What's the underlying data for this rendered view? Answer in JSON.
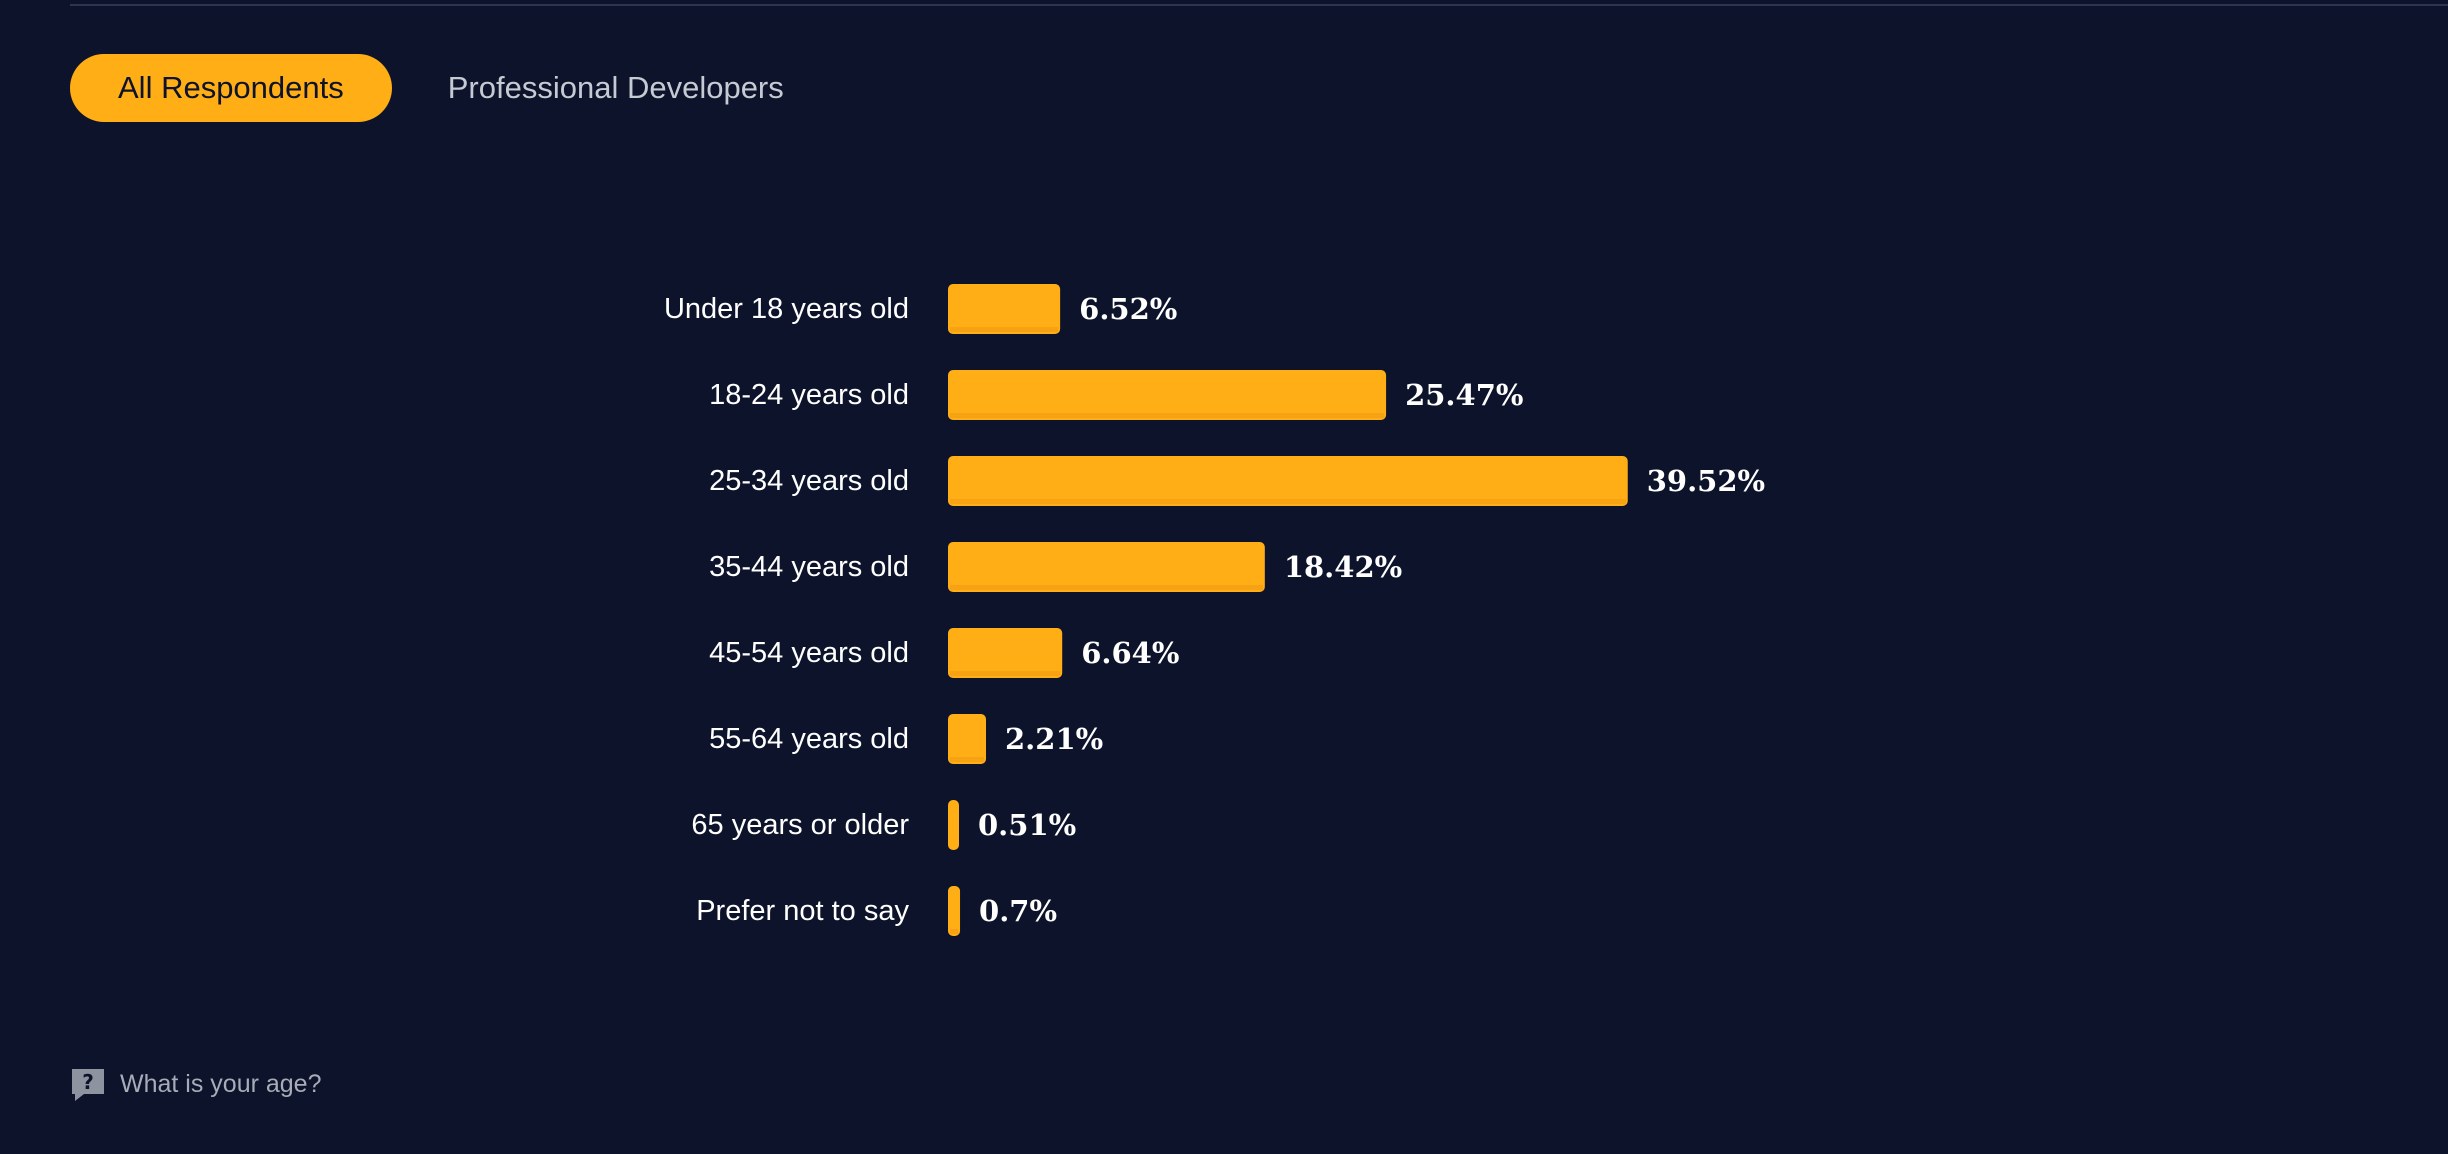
{
  "tabs": {
    "all_label": "All Respondents",
    "pro_label": "Professional Developers"
  },
  "footer": {
    "question": "What is your age?",
    "icon": "question-bubble-icon"
  },
  "colors": {
    "background": "#0c132a",
    "bar": "#ffae16",
    "bar_shadow": "#f29a10",
    "active_tab": "#ffae16"
  },
  "chart_data": {
    "type": "bar",
    "orientation": "horizontal",
    "title": "",
    "xlabel": "",
    "ylabel": "",
    "categories": [
      "Under 18 years old",
      "18-24 years old",
      "25-34 years old",
      "35-44 years old",
      "45-54 years old",
      "55-64 years old",
      "65 years or older",
      "Prefer not to say"
    ],
    "values": [
      6.52,
      25.47,
      39.52,
      18.42,
      6.64,
      2.21,
      0.51,
      0.7
    ],
    "value_labels": [
      "6.52%",
      "25.47%",
      "39.52%",
      "18.42%",
      "6.64%",
      "2.21%",
      "0.51%",
      "0.7%"
    ],
    "grid": false,
    "legend": "none"
  }
}
